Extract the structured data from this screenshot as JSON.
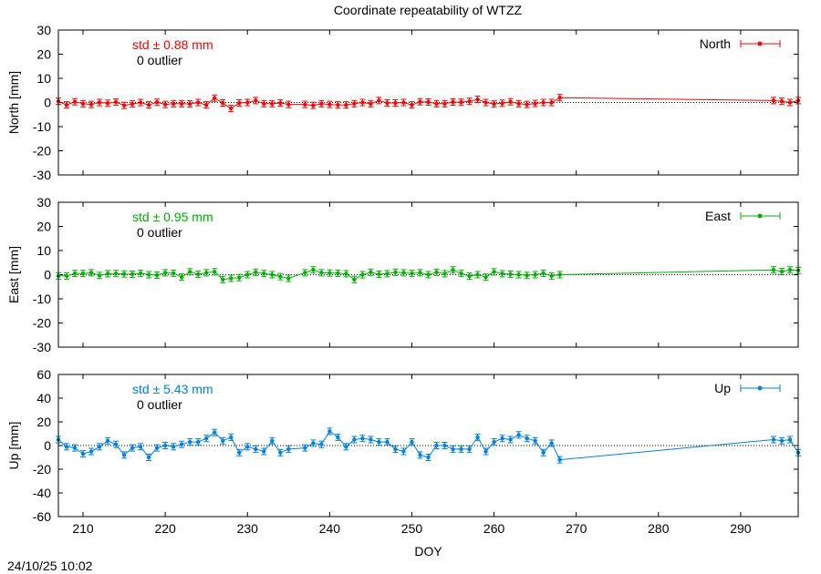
{
  "title": "Coordinate repeatability of WTZZ",
  "footer_timestamp": "24/10/25 10:02",
  "chart_data": [
    {
      "type": "line",
      "component": "north",
      "ylabel": "North [mm]",
      "xlabel": "",
      "legend": "North",
      "legend_position": "top-right",
      "color": "#ff0000",
      "stat_label": "std ± 0.88 mm",
      "stat_color": "#ff0000",
      "outlier_label": "0 outlier",
      "xlim": [
        207,
        297
      ],
      "ylim": [
        -30,
        30
      ],
      "yticks": [
        -30,
        -20,
        -10,
        0,
        10,
        20,
        30
      ],
      "grid": false,
      "zero_line": true,
      "x": [
        207,
        208,
        209,
        210,
        211,
        212,
        213,
        214,
        215,
        216,
        217,
        218,
        219,
        220,
        221,
        222,
        223,
        224,
        225,
        226,
        227,
        228,
        229,
        230,
        231,
        232,
        233,
        234,
        235,
        237,
        238,
        239,
        240,
        241,
        242,
        243,
        244,
        245,
        246,
        247,
        248,
        249,
        250,
        251,
        252,
        253,
        254,
        255,
        256,
        257,
        258,
        259,
        260,
        261,
        262,
        263,
        264,
        265,
        266,
        267,
        268,
        294,
        295,
        296,
        297
      ],
      "y": [
        0.5,
        -1.0,
        0.3,
        -0.5,
        -0.8,
        0.0,
        -0.3,
        0.2,
        -1.2,
        -0.6,
        0.0,
        -1.0,
        0.1,
        -0.8,
        -0.5,
        -0.5,
        -0.6,
        0.0,
        -1.0,
        1.8,
        -0.2,
        -2.5,
        -0.2,
        0.0,
        0.8,
        -0.5,
        -0.5,
        -0.2,
        -0.8,
        -0.8,
        -1.2,
        -0.5,
        -0.8,
        -1.0,
        -1.0,
        -0.5,
        0.0,
        -0.5,
        0.8,
        -0.2,
        -0.2,
        0.0,
        -1.0,
        0.3,
        0.2,
        -0.5,
        -0.5,
        0.2,
        0.1,
        0.5,
        1.3,
        0.0,
        -0.6,
        -0.3,
        0.3,
        -0.5,
        -0.8,
        -0.4,
        0.0,
        0.0,
        2.0,
        0.8,
        0.5,
        0.0,
        0.8
      ]
    },
    {
      "type": "line",
      "component": "east",
      "ylabel": "East [mm]",
      "xlabel": "",
      "legend": "East",
      "legend_position": "top-right",
      "color": "#00b000",
      "stat_label": "std ± 0.95 mm",
      "stat_color": "#00b000",
      "outlier_label": "0 outlier",
      "xlim": [
        207,
        297
      ],
      "ylim": [
        -30,
        30
      ],
      "yticks": [
        -30,
        -20,
        -10,
        0,
        10,
        20,
        30
      ],
      "grid": false,
      "zero_line": true,
      "x": [
        207,
        208,
        209,
        210,
        211,
        212,
        213,
        214,
        215,
        216,
        217,
        218,
        219,
        220,
        221,
        222,
        223,
        224,
        225,
        226,
        227,
        228,
        229,
        230,
        231,
        232,
        233,
        234,
        235,
        237,
        238,
        239,
        240,
        241,
        242,
        243,
        244,
        245,
        246,
        247,
        248,
        249,
        250,
        251,
        252,
        253,
        254,
        255,
        256,
        257,
        258,
        259,
        260,
        261,
        262,
        263,
        264,
        265,
        266,
        267,
        268,
        294,
        295,
        296,
        297
      ],
      "y": [
        -0.5,
        -0.5,
        0.5,
        0.5,
        0.8,
        -0.3,
        0.4,
        0.5,
        0.3,
        0.2,
        0.6,
        0.0,
        -0.2,
        0.8,
        0.6,
        -1.0,
        1.2,
        0.2,
        0.8,
        1.2,
        -2.0,
        -1.5,
        -1.2,
        0.0,
        1.0,
        0.5,
        0.0,
        -0.8,
        -1.5,
        0.8,
        2.0,
        0.8,
        0.7,
        0.6,
        0.4,
        -2.0,
        0.0,
        1.0,
        0.2,
        0.4,
        1.0,
        0.8,
        0.5,
        0.8,
        0.0,
        1.0,
        0.4,
        2.0,
        0.5,
        -0.6,
        0.0,
        -1.0,
        1.2,
        0.4,
        0.2,
        0.0,
        -0.3,
        0.0,
        0.6,
        -0.5,
        0.0,
        2.0,
        1.3,
        2.0,
        1.8
      ]
    },
    {
      "type": "line",
      "component": "up",
      "ylabel": "Up [mm]",
      "xlabel": "DOY",
      "legend": "Up",
      "legend_position": "top-right",
      "color": "#0080e0",
      "stat_label": "std ± 5.43 mm",
      "stat_color": "#0080e0",
      "outlier_label": "0 outlier",
      "xlim": [
        207,
        297
      ],
      "ylim": [
        -60,
        60
      ],
      "yticks": [
        -60,
        -40,
        -20,
        0,
        20,
        40,
        60
      ],
      "xticks": [
        210,
        220,
        230,
        240,
        250,
        260,
        270,
        280,
        290
      ],
      "grid": false,
      "zero_line": true,
      "x": [
        207,
        208,
        209,
        210,
        211,
        212,
        213,
        214,
        215,
        216,
        217,
        218,
        219,
        220,
        221,
        222,
        223,
        224,
        225,
        226,
        227,
        228,
        229,
        230,
        231,
        232,
        233,
        234,
        235,
        237,
        238,
        239,
        240,
        241,
        242,
        243,
        244,
        245,
        246,
        247,
        248,
        249,
        250,
        251,
        252,
        253,
        254,
        255,
        256,
        257,
        258,
        259,
        260,
        261,
        262,
        263,
        264,
        265,
        266,
        267,
        268,
        294,
        295,
        296,
        297
      ],
      "y": [
        5,
        -1,
        -2,
        -7,
        -5,
        -1,
        4,
        1,
        -8,
        -2,
        -1,
        -10,
        -2,
        0,
        -1,
        1,
        3,
        3,
        6,
        11,
        4,
        7,
        -6,
        -1,
        -3,
        -5,
        4,
        -6,
        -3,
        -2,
        2,
        1,
        12,
        7,
        -1,
        5,
        6,
        5,
        3,
        3,
        -3,
        -5,
        3,
        -8,
        -10,
        0,
        0,
        -3,
        -3,
        -3,
        7,
        -5,
        3,
        6,
        5,
        9,
        6,
        4,
        -6,
        2,
        -12,
        5,
        4,
        5,
        -6
      ]
    }
  ]
}
